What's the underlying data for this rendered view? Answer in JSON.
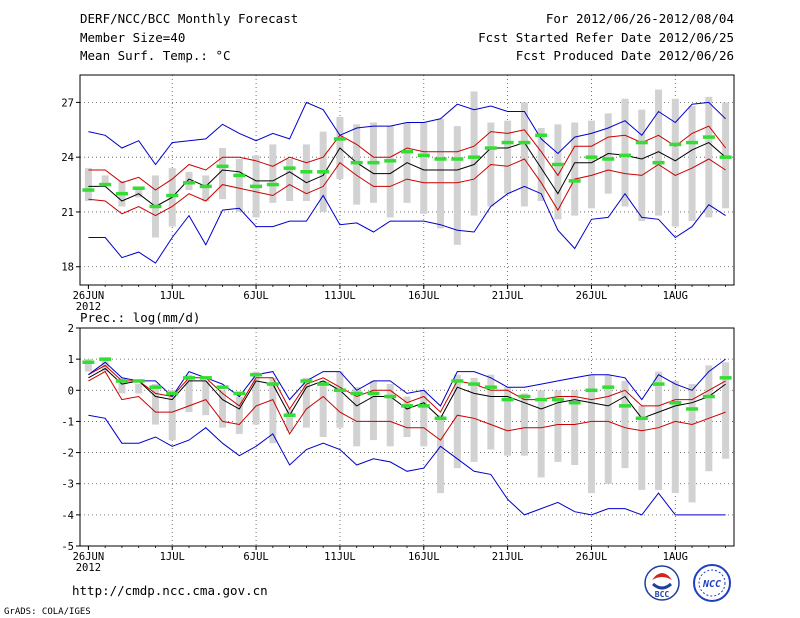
{
  "header": {
    "title": "DERF/NCC/BCC Monthly Forecast",
    "member_size": "Member Size=40",
    "period": "For 2012/06/26-2012/08/04",
    "fcst_started": "Fcst Started Refer Date 2012/06/25",
    "fcst_produced": "Fcst Produced Date 2012/06/26"
  },
  "footer": {
    "url": "http://cmdp.ncc.cma.gov.cn",
    "credit": "GrADS: COLA/IGES",
    "logos": {
      "bcc": "BCC",
      "ncc": "NCC"
    }
  },
  "colors": {
    "ensemble_mean": "#000000",
    "spread": "#cc0000",
    "extremes": "#0000cc",
    "median": "#33dd33",
    "box": "#d2d2d2",
    "grid": "#555555"
  },
  "chart_data": [
    {
      "type": "line",
      "title": "Mean Surf. Temp.: °C",
      "ylim": [
        17,
        28.5
      ],
      "yticks": [
        18,
        21,
        24,
        27
      ],
      "xlim": [
        0.5,
        39.5
      ],
      "xticks": [
        {
          "day": 1,
          "label": "26JUN",
          "sub": "2012"
        },
        {
          "day": 6,
          "label": "1JUL"
        },
        {
          "day": 11,
          "label": "6JUL"
        },
        {
          "day": 16,
          "label": "11JUL"
        },
        {
          "day": 21,
          "label": "16JUL"
        },
        {
          "day": 26,
          "label": "21JUL"
        },
        {
          "day": 31,
          "label": "26JUL"
        },
        {
          "day": 36,
          "label": "1AUG"
        }
      ],
      "x": [
        1,
        2,
        3,
        4,
        5,
        6,
        7,
        8,
        9,
        10,
        11,
        12,
        13,
        14,
        15,
        16,
        17,
        18,
        19,
        20,
        21,
        22,
        23,
        24,
        25,
        26,
        27,
        28,
        29,
        30,
        31,
        32,
        33,
        34,
        35,
        36,
        37,
        38,
        39
      ],
      "series": [
        {
          "name": "ensemble mean",
          "color": "#000000",
          "values": [
            22.4,
            22.4,
            21.6,
            22.0,
            21.3,
            21.8,
            22.8,
            22.4,
            23.3,
            23.2,
            22.7,
            22.7,
            23.2,
            22.6,
            23.0,
            24.5,
            23.7,
            23.1,
            23.1,
            23.7,
            23.3,
            23.3,
            23.3,
            23.6,
            24.5,
            24.5,
            24.8,
            23.4,
            22.0,
            23.7,
            23.7,
            24.2,
            24.1,
            23.9,
            24.3,
            23.8,
            24.4,
            24.8,
            24.0
          ]
        },
        {
          "name": "upper spread",
          "color": "#cc0000",
          "values": [
            23.3,
            23.3,
            22.6,
            22.9,
            22.2,
            22.8,
            23.6,
            23.3,
            24.0,
            24.0,
            23.8,
            23.5,
            24.0,
            23.7,
            24.0,
            25.2,
            24.7,
            24.0,
            24.0,
            24.5,
            24.3,
            24.3,
            24.3,
            24.6,
            25.4,
            25.3,
            25.5,
            24.3,
            23.0,
            24.6,
            24.6,
            25.1,
            25.2,
            24.8,
            25.2,
            24.6,
            25.3,
            25.7,
            24.5
          ]
        },
        {
          "name": "lower spread",
          "color": "#cc0000",
          "values": [
            21.7,
            21.6,
            20.9,
            21.3,
            20.8,
            21.3,
            22.0,
            21.6,
            22.5,
            22.3,
            22.1,
            21.9,
            22.5,
            22.0,
            22.4,
            23.7,
            23.0,
            22.4,
            22.4,
            22.8,
            22.6,
            22.6,
            22.6,
            22.8,
            23.6,
            23.5,
            23.9,
            22.6,
            21.1,
            22.8,
            23.0,
            23.3,
            23.1,
            23.0,
            23.6,
            23.0,
            23.4,
            23.9,
            23.3
          ]
        },
        {
          "name": "maximum",
          "color": "#0000cc",
          "values": [
            25.4,
            25.2,
            24.5,
            24.9,
            23.6,
            24.8,
            24.9,
            25.0,
            25.8,
            25.3,
            24.9,
            25.3,
            25.0,
            27.0,
            26.6,
            25.2,
            25.6,
            25.7,
            25.7,
            25.9,
            25.9,
            26.1,
            26.9,
            26.6,
            26.8,
            26.5,
            26.5,
            25.0,
            24.2,
            25.1,
            25.3,
            25.6,
            26.0,
            25.2,
            26.5,
            25.9,
            26.9,
            27.0,
            26.1
          ]
        },
        {
          "name": "minimum",
          "color": "#0000cc",
          "values": [
            19.6,
            19.6,
            18.5,
            18.8,
            18.2,
            19.6,
            20.8,
            19.2,
            21.1,
            21.2,
            20.2,
            20.2,
            20.5,
            20.5,
            21.9,
            20.3,
            20.4,
            19.9,
            20.5,
            20.5,
            20.5,
            20.3,
            20.0,
            19.9,
            21.3,
            22.0,
            22.4,
            22.0,
            20.0,
            19.0,
            20.6,
            20.7,
            22.0,
            20.7,
            20.6,
            19.6,
            20.2,
            21.4,
            20.8
          ]
        }
      ],
      "boxes": [
        [
          21.6,
          23.4
        ],
        [
          22.5,
          23.0
        ],
        [
          21.3,
          22.7
        ],
        [
          21.8,
          22.3
        ],
        [
          19.6,
          23.0
        ],
        [
          20.2,
          23.4
        ],
        [
          22.2,
          23.2
        ],
        [
          21.6,
          23.0
        ],
        [
          21.7,
          24.5
        ],
        [
          21.0,
          23.9
        ],
        [
          20.7,
          24.1
        ],
        [
          21.5,
          24.7
        ],
        [
          21.6,
          23.9
        ],
        [
          21.6,
          24.7
        ],
        [
          21.0,
          25.4
        ],
        [
          22.8,
          26.2
        ],
        [
          21.4,
          25.8
        ],
        [
          21.5,
          25.9
        ],
        [
          20.7,
          25.7
        ],
        [
          21.5,
          25.9
        ],
        [
          20.9,
          25.9
        ],
        [
          20.1,
          26.1
        ],
        [
          19.2,
          25.7
        ],
        [
          20.8,
          27.6
        ],
        [
          21.3,
          25.9
        ],
        [
          22.0,
          26.0
        ],
        [
          21.3,
          27.0
        ],
        [
          21.6,
          25.6
        ],
        [
          20.6,
          25.8
        ],
        [
          20.8,
          25.9
        ],
        [
          21.2,
          26.0
        ],
        [
          22.0,
          26.4
        ],
        [
          21.3,
          27.2
        ],
        [
          20.5,
          26.6
        ],
        [
          20.8,
          27.7
        ],
        [
          20.2,
          27.2
        ],
        [
          20.5,
          26.8
        ],
        [
          20.7,
          27.3
        ],
        [
          21.2,
          27.0
        ]
      ],
      "median": [
        22.2,
        22.5,
        22.0,
        22.3,
        21.3,
        21.9,
        22.6,
        22.4,
        23.5,
        23.0,
        22.4,
        22.5,
        23.4,
        23.2,
        23.2,
        25.0,
        23.7,
        23.7,
        23.8,
        24.3,
        24.1,
        23.9,
        23.9,
        24.0,
        24.5,
        24.8,
        24.8,
        25.2,
        23.6,
        22.7,
        24.0,
        23.9,
        24.1,
        24.8,
        23.7,
        24.7,
        24.8,
        25.1,
        24.0
      ],
      "xlabel": "",
      "ylabel": ""
    },
    {
      "type": "line",
      "title": "Prec.: log(mm/d)",
      "ylim": [
        -5,
        2
      ],
      "yticks": [
        -5,
        -4,
        -3,
        -2,
        -1,
        0,
        1,
        2
      ],
      "xlim": [
        0.5,
        39.5
      ],
      "xticks": [
        {
          "day": 1,
          "label": "26JUN",
          "sub": "2012"
        },
        {
          "day": 6,
          "label": "1JUL"
        },
        {
          "day": 11,
          "label": "6JUL"
        },
        {
          "day": 16,
          "label": "11JUL"
        },
        {
          "day": 21,
          "label": "16JUL"
        },
        {
          "day": 26,
          "label": "21JUL"
        },
        {
          "day": 31,
          "label": "26JUL"
        },
        {
          "day": 36,
          "label": "1AUG"
        }
      ],
      "x": [
        1,
        2,
        3,
        4,
        5,
        6,
        7,
        8,
        9,
        10,
        11,
        12,
        13,
        14,
        15,
        16,
        17,
        18,
        19,
        20,
        21,
        22,
        23,
        24,
        25,
        26,
        27,
        28,
        29,
        30,
        31,
        32,
        33,
        34,
        35,
        36,
        37,
        38,
        39
      ],
      "series": [
        {
          "name": "ensemble mean",
          "color": "#000000",
          "values": [
            0.4,
            0.7,
            0.2,
            0.3,
            -0.2,
            -0.3,
            0.3,
            0.3,
            -0.3,
            -0.6,
            0.3,
            0.2,
            -0.8,
            0.1,
            0.3,
            0.0,
            -0.5,
            -0.2,
            -0.2,
            -0.6,
            -0.4,
            -0.9,
            0.1,
            -0.1,
            -0.2,
            -0.2,
            -0.4,
            -0.6,
            -0.4,
            -0.3,
            -0.4,
            -0.5,
            -0.2,
            -0.9,
            -0.7,
            -0.5,
            -0.4,
            -0.2,
            0.2
          ]
        },
        {
          "name": "upper spread",
          "color": "#cc0000",
          "values": [
            0.5,
            0.8,
            0.3,
            0.3,
            -0.1,
            -0.2,
            0.4,
            0.4,
            -0.1,
            -0.5,
            0.4,
            0.4,
            -0.6,
            0.2,
            0.4,
            0.1,
            -0.2,
            0.0,
            0.0,
            -0.4,
            -0.2,
            -0.7,
            0.3,
            0.2,
            0.0,
            0.0,
            -0.3,
            -0.3,
            -0.2,
            -0.2,
            -0.3,
            -0.2,
            0.0,
            -0.5,
            -0.5,
            -0.3,
            -0.3,
            0.0,
            0.3
          ]
        },
        {
          "name": "lower spread",
          "color": "#cc0000",
          "values": [
            0.3,
            0.6,
            -0.3,
            -0.2,
            -0.7,
            -0.7,
            -0.5,
            -0.3,
            -1.0,
            -1.1,
            -0.5,
            -0.3,
            -1.4,
            -0.6,
            -0.2,
            -0.7,
            -1.0,
            -1.0,
            -1.0,
            -1.2,
            -1.2,
            -1.6,
            -0.8,
            -0.9,
            -1.1,
            -1.3,
            -1.2,
            -1.2,
            -1.1,
            -1.1,
            -1.0,
            -1.0,
            -1.2,
            -1.3,
            -1.2,
            -1.0,
            -1.1,
            -0.9,
            -0.7
          ]
        },
        {
          "name": "maximum",
          "color": "#0000cc",
          "values": [
            0.5,
            0.9,
            0.4,
            0.3,
            0.3,
            -0.2,
            0.6,
            0.4,
            0.2,
            -0.2,
            0.5,
            0.6,
            -0.3,
            0.3,
            0.6,
            0.6,
            0.0,
            0.3,
            0.3,
            -0.1,
            0.0,
            -0.5,
            0.6,
            0.6,
            0.4,
            0.1,
            0.1,
            0.2,
            0.3,
            0.4,
            0.5,
            0.5,
            0.4,
            -0.3,
            0.5,
            0.2,
            0.0,
            0.6,
            1.0
          ]
        },
        {
          "name": "minimum",
          "color": "#0000cc",
          "values": [
            -0.8,
            -0.9,
            -1.7,
            -1.7,
            -1.5,
            -1.8,
            -1.6,
            -1.2,
            -1.7,
            -2.1,
            -1.8,
            -1.4,
            -2.4,
            -1.9,
            -1.7,
            -1.9,
            -2.4,
            -2.2,
            -2.3,
            -2.6,
            -2.5,
            -1.8,
            -2.2,
            -2.6,
            -2.7,
            -3.5,
            -4.0,
            -3.8,
            -3.6,
            -3.9,
            -4.0,
            -3.8,
            -3.8,
            -4.0,
            -3.3,
            -4.0,
            -4.0,
            -4.0,
            -4.0
          ]
        }
      ],
      "boxes": [
        [
          0.6,
          1.0
        ],
        [
          0.6,
          1.0
        ],
        [
          -0.1,
          0.4
        ],
        [
          -0.1,
          0.2
        ],
        [
          -1.1,
          0.2
        ],
        [
          -1.6,
          0.0
        ],
        [
          -0.7,
          0.5
        ],
        [
          -0.8,
          0.3
        ],
        [
          -1.2,
          0.0
        ],
        [
          -1.4,
          -0.2
        ],
        [
          -1.1,
          0.6
        ],
        [
          -1.7,
          0.4
        ],
        [
          -1.3,
          -0.6
        ],
        [
          -1.2,
          0.4
        ],
        [
          -1.5,
          0.3
        ],
        [
          -1.2,
          0.6
        ],
        [
          -1.8,
          0.1
        ],
        [
          -1.6,
          0.3
        ],
        [
          -1.8,
          0.2
        ],
        [
          -1.5,
          -0.2
        ],
        [
          -1.8,
          0.0
        ],
        [
          -3.3,
          -0.8
        ],
        [
          -2.5,
          0.5
        ],
        [
          -2.3,
          0.4
        ],
        [
          -1.9,
          0.5
        ],
        [
          -2.1,
          0.1
        ],
        [
          -2.1,
          -0.1
        ],
        [
          -2.8,
          0.0
        ],
        [
          -2.3,
          0.0
        ],
        [
          -2.4,
          0.0
        ],
        [
          -3.3,
          0.5
        ],
        [
          -3.0,
          0.5
        ],
        [
          -2.5,
          0.3
        ],
        [
          -3.2,
          -0.5
        ],
        [
          -3.2,
          0.6
        ],
        [
          -3.3,
          0.3
        ],
        [
          -3.6,
          0.2
        ],
        [
          -2.6,
          0.8
        ],
        [
          -2.2,
          0.9
        ]
      ],
      "median": [
        0.9,
        1.0,
        0.3,
        0.3,
        0.1,
        -0.1,
        0.4,
        0.4,
        0.1,
        -0.1,
        0.5,
        0.2,
        -0.8,
        0.3,
        0.2,
        0.0,
        -0.1,
        -0.1,
        -0.2,
        -0.5,
        -0.5,
        -0.9,
        0.3,
        0.2,
        0.1,
        -0.3,
        -0.2,
        -0.3,
        -0.3,
        -0.4,
        0.0,
        0.1,
        -0.5,
        -0.9,
        0.2,
        -0.4,
        -0.6,
        -0.2,
        0.4
      ],
      "xlabel": "",
      "ylabel": ""
    }
  ]
}
